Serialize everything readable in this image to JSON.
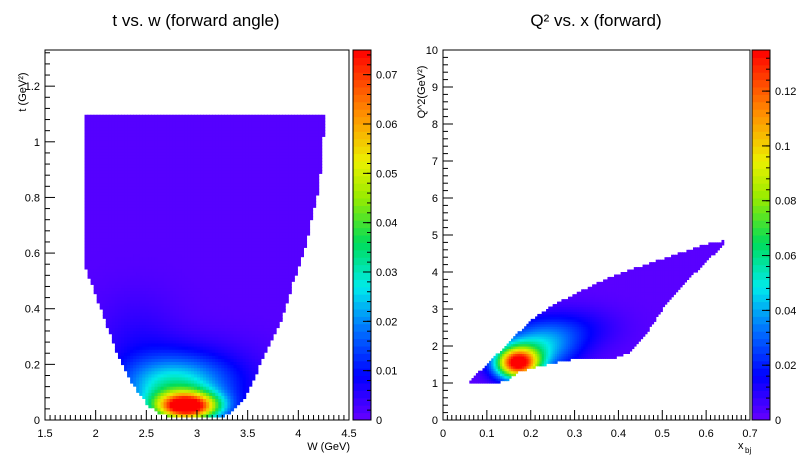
{
  "chart_data": [
    {
      "type": "heatmap",
      "title": "t vs. w (forward angle)",
      "xlabel": "W (GeV)",
      "ylabel": "t (GeV²)",
      "xlim": [
        1.5,
        4.5
      ],
      "ylim": [
        0,
        1.33
      ],
      "xticks": [
        "1.5",
        "2",
        "2.5",
        "3",
        "3.5",
        "4",
        "4.5"
      ],
      "yticks": [
        "0",
        "0.2",
        "0.4",
        "0.6",
        "0.8",
        "1",
        "1.2"
      ],
      "colorbar": {
        "range": [
          0,
          0.075
        ],
        "ticks": [
          "0",
          "0.01",
          "0.02",
          "0.03",
          "0.04",
          "0.05",
          "0.06",
          "0.07"
        ]
      },
      "grid": false,
      "coverage_boundary": {
        "left": [
          [
            1.9,
            1.1
          ],
          [
            1.9,
            0.55
          ],
          [
            1.95,
            0.5
          ],
          [
            2.0,
            0.45
          ],
          [
            2.1,
            0.35
          ],
          [
            2.2,
            0.25
          ],
          [
            2.3,
            0.17
          ],
          [
            2.4,
            0.11
          ],
          [
            2.5,
            0.06
          ],
          [
            2.6,
            0.03
          ],
          [
            2.75,
            0.01
          ]
        ],
        "right": [
          [
            4.25,
            1.1
          ],
          [
            4.25,
            1.05
          ],
          [
            4.22,
            0.9
          ],
          [
            4.18,
            0.8
          ],
          [
            4.05,
            0.6
          ],
          [
            3.95,
            0.5
          ],
          [
            3.85,
            0.38
          ],
          [
            3.75,
            0.3
          ],
          [
            3.62,
            0.2
          ],
          [
            3.5,
            0.1
          ],
          [
            3.4,
            0.05
          ],
          [
            3.3,
            0.02
          ],
          [
            3.2,
            0.01
          ]
        ]
      },
      "hotspots": [
        {
          "w": 2.9,
          "t": 0.05,
          "sw": 0.22,
          "st": 0.035,
          "z": 0.072
        },
        {
          "w": 2.75,
          "t": 0.12,
          "sw": 0.35,
          "st": 0.07,
          "z": 0.022
        },
        {
          "w": 3.0,
          "t": 0.15,
          "sw": 0.45,
          "st": 0.09,
          "z": 0.008
        },
        {
          "w": 2.4,
          "t": 0.28,
          "sw": 0.3,
          "st": 0.12,
          "z": 0.004
        }
      ]
    },
    {
      "type": "heatmap",
      "title": "Q² vs. x (forward)",
      "xlabel": "x",
      "xlabel_sub": "bj",
      "ylabel": "Q^2(GeV²)",
      "xlim": [
        0,
        0.7
      ],
      "ylim": [
        0,
        10
      ],
      "xticks": [
        "0",
        "0.1",
        "0.2",
        "0.3",
        "0.4",
        "0.5",
        "0.6",
        "0.7"
      ],
      "yticks": [
        "0",
        "1",
        "2",
        "3",
        "4",
        "5",
        "6",
        "7",
        "8",
        "9",
        "10"
      ],
      "colorbar": {
        "range": [
          0,
          0.135
        ],
        "ticks": [
          "0",
          "0.02",
          "0.04",
          "0.06",
          "0.08",
          "0.1",
          "0.12"
        ]
      },
      "grid": false,
      "coverage_boundary": {
        "upper": [
          [
            0.06,
            1.05
          ],
          [
            0.1,
            1.5
          ],
          [
            0.15,
            2.1
          ],
          [
            0.2,
            2.7
          ],
          [
            0.25,
            3.1
          ],
          [
            0.3,
            3.4
          ],
          [
            0.35,
            3.7
          ],
          [
            0.4,
            3.95
          ],
          [
            0.45,
            4.15
          ],
          [
            0.5,
            4.35
          ],
          [
            0.55,
            4.55
          ],
          [
            0.6,
            4.75
          ],
          [
            0.64,
            4.85
          ]
        ],
        "lower": [
          [
            0.64,
            4.75
          ],
          [
            0.6,
            4.3
          ],
          [
            0.55,
            3.7
          ],
          [
            0.5,
            3.0
          ],
          [
            0.46,
            2.3
          ],
          [
            0.42,
            1.8
          ],
          [
            0.38,
            1.65
          ],
          [
            0.3,
            1.65
          ],
          [
            0.25,
            1.55
          ],
          [
            0.2,
            1.4
          ],
          [
            0.17,
            1.3
          ],
          [
            0.15,
            1.1
          ],
          [
            0.12,
            1.0
          ],
          [
            0.06,
            1.0
          ]
        ]
      },
      "hotspots": [
        {
          "x": 0.17,
          "q": 1.55,
          "sx": 0.035,
          "sq": 0.3,
          "z": 0.13
        },
        {
          "x": 0.22,
          "q": 2.0,
          "sx": 0.06,
          "sq": 0.45,
          "z": 0.04
        },
        {
          "x": 0.3,
          "q": 2.5,
          "sx": 0.07,
          "sq": 0.4,
          "z": 0.012
        }
      ]
    }
  ]
}
